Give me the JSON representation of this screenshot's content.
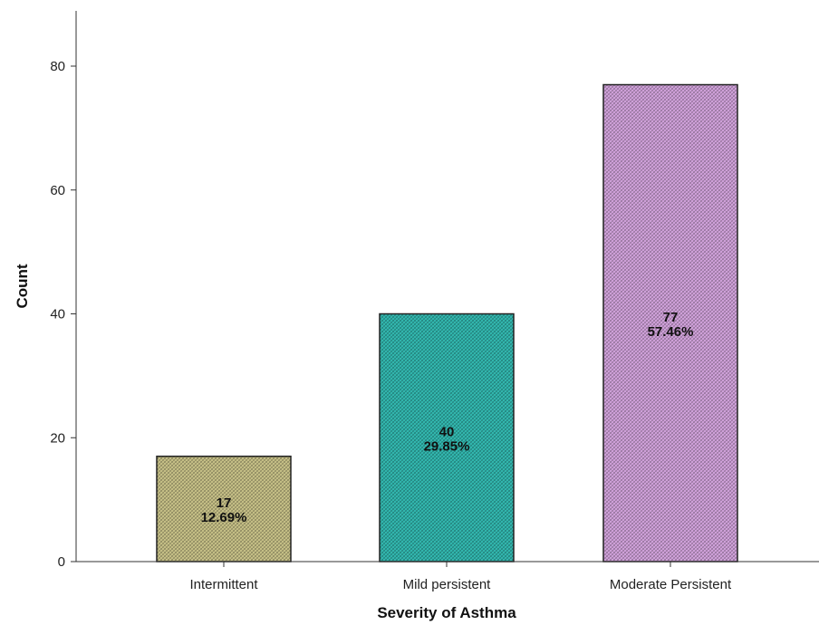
{
  "chart_data": {
    "type": "bar",
    "categories": [
      "Intermittent",
      "Mild persistent",
      "Moderate Persistent"
    ],
    "values": [
      17,
      40,
      77
    ],
    "percent_labels": [
      "12.69%",
      "29.85%",
      "57.46%"
    ],
    "colors": [
      "#cbc58a",
      "#33bcb3",
      "#d6a6e0"
    ],
    "title": "",
    "xlabel": "Severity of Asthma",
    "ylabel": "Count",
    "ylim": [
      0,
      88
    ],
    "yticks": [
      0,
      20,
      40,
      60,
      80
    ],
    "grid": false,
    "legend": "none"
  }
}
